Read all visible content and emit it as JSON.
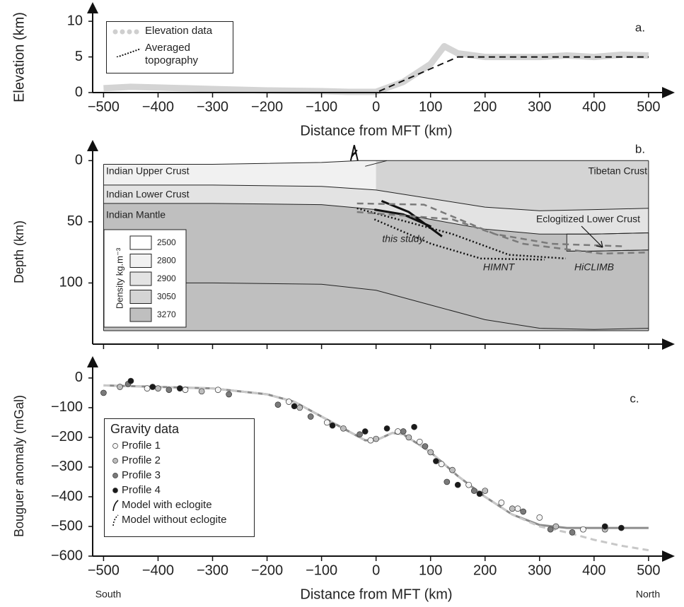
{
  "chart_data": [
    {
      "type": "line",
      "label": "a.",
      "xlabel": "Distance from MFT (km)",
      "ylabel": "Elevation (km)",
      "xlim": [
        -520,
        530
      ],
      "ylim": [
        0,
        11.5
      ],
      "xticks": [
        {
          "value": -500,
          "label": "−500"
        },
        {
          "value": -400,
          "label": "−400"
        },
        {
          "value": -300,
          "label": "−300"
        },
        {
          "value": -200,
          "label": "−200"
        },
        {
          "value": -100,
          "label": "−100"
        },
        0,
        100,
        200,
        300,
        400,
        500
      ],
      "yticks": [
        0,
        5,
        10
      ],
      "series": [
        {
          "name": "Elevation data",
          "color": "#cfcfcf",
          "style": "band",
          "x": [
            -500,
            -450,
            -400,
            -350,
            -300,
            -250,
            -200,
            -150,
            -100,
            -50,
            0,
            50,
            100,
            125,
            150,
            200,
            250,
            300,
            350,
            400,
            450,
            500
          ],
          "values": [
            0.6,
            0.8,
            0.7,
            0.6,
            0.5,
            0.4,
            0.3,
            0.25,
            0.2,
            0.1,
            0.1,
            1.5,
            4,
            6.5,
            5.5,
            5,
            5,
            5,
            5.2,
            5,
            5.3,
            5.2
          ]
        },
        {
          "name": "Averaged topography",
          "color": "#111111",
          "style": "dashed",
          "x": [
            -500,
            0,
            150,
            500
          ],
          "values": [
            0,
            0,
            5,
            5
          ]
        }
      ]
    },
    {
      "type": "cross-section",
      "label": "b.",
      "ylabel": "Depth (km)",
      "xlim": [
        -520,
        530
      ],
      "ylim": [
        -10,
        150
      ],
      "xticks": [
        -500,
        -400,
        -300,
        -200,
        -100,
        0,
        100,
        200,
        300,
        400,
        500
      ],
      "yticks": [
        0,
        50,
        100
      ],
      "region_labels": [
        "Indian Upper Crust",
        "Indian Lower Crust",
        "Indian Mantle",
        "Tibetan Crust",
        "Eclogitized Lower Crust"
      ],
      "legend": {
        "title": "Density kg.m⁻³",
        "entries": [
          {
            "value": 2500,
            "color": "#ffffff"
          },
          {
            "value": 2800,
            "color": "#f1f1f1"
          },
          {
            "value": 2900,
            "color": "#e3e3e3"
          },
          {
            "value": 3050,
            "color": "#d4d4d4"
          },
          {
            "value": 3270,
            "color": "#bfbfbf"
          }
        ]
      },
      "interfaces": [
        {
          "x": [
            -500,
            -300,
            -100,
            -30,
            0,
            500
          ],
          "values": [
            3,
            3,
            1.5,
            0,
            0,
            0
          ]
        },
        {
          "x": [
            -500,
            -300,
            -100,
            0,
            100,
            200,
            300,
            400,
            500
          ],
          "values": [
            20,
            20,
            21,
            24,
            31,
            38,
            41,
            40,
            39
          ]
        },
        {
          "x": [
            -500,
            -300,
            -100,
            0,
            100,
            200,
            300,
            400,
            500
          ],
          "values": [
            35,
            35,
            36,
            40,
            48,
            56,
            60,
            60,
            59
          ]
        },
        {
          "x": [
            -500,
            -300,
            -100,
            0,
            100,
            200,
            300,
            400,
            500
          ],
          "values": [
            100,
            100,
            101,
            106,
            118,
            130,
            137,
            138,
            137
          ]
        },
        {
          "x": [
            -500,
            500
          ],
          "values": [
            139,
            139
          ]
        },
        {
          "x": [
            350,
            400,
            500
          ],
          "values": [
            74,
            74,
            73
          ]
        }
      ],
      "series": [
        {
          "name": "this study",
          "color": "#111111",
          "style": "solid",
          "x": [
            10,
            60,
            121,
            null,
            -3,
            50,
            101
          ],
          "values": [
            33,
            42,
            62,
            null,
            40,
            44,
            54
          ]
        },
        {
          "name": "HIMNT",
          "color": "#111111",
          "style": "dotted",
          "x": [
            -35,
            140,
            244,
            348,
            null,
            -3,
            101,
            192,
            309
          ],
          "values": [
            39,
            60,
            77,
            80,
            null,
            48,
            68,
            80,
            81
          ]
        },
        {
          "name": "HiCLIMB",
          "color": "#7a7a7a",
          "style": "dashed",
          "x": [
            -35,
            88,
            218,
            322,
            452,
            null,
            -35,
            140,
            270,
            413,
            500
          ],
          "values": [
            35,
            36,
            60,
            68,
            70,
            null,
            42,
            48,
            68,
            76,
            75
          ]
        }
      ]
    },
    {
      "type": "scatter",
      "label": "c.",
      "xlabel": "Distance from MFT (km)",
      "ylabel": "Bouguer anomaly (mGal)",
      "direction_labels": [
        "South",
        "North"
      ],
      "legend_title": "Gravity data",
      "xlim": [
        -520,
        530
      ],
      "ylim": [
        -600,
        45
      ],
      "xticks": [
        {
          "value": -500,
          "label": "−500"
        },
        {
          "value": -400,
          "label": "−400"
        },
        {
          "value": -300,
          "label": "−300"
        },
        {
          "value": -200,
          "label": "−200"
        },
        {
          "value": -100,
          "label": "−100"
        },
        0,
        100,
        200,
        300,
        400,
        500
      ],
      "yticks": [
        {
          "value": -600,
          "label": "−600"
        },
        {
          "value": -500,
          "label": "−500"
        },
        {
          "value": -400,
          "label": "−400"
        },
        {
          "value": -300,
          "label": "−300"
        },
        {
          "value": -200,
          "label": "−200"
        },
        {
          "value": -100,
          "label": "−100"
        },
        0
      ],
      "series": [
        {
          "name": "Profile 1",
          "kind": "points",
          "color": "#f5f5f5",
          "x": [
            -420,
            -350,
            -290,
            -160,
            -90,
            -10,
            40,
            80,
            120,
            170,
            230,
            260,
            300,
            380
          ],
          "values": [
            -35,
            -40,
            -40,
            -80,
            -150,
            -210,
            -180,
            -215,
            -290,
            -360,
            -420,
            -440,
            -470,
            -510
          ]
        },
        {
          "name": "Profile 2",
          "kind": "points",
          "color": "#bdbdbd",
          "x": [
            -470,
            -400,
            -320,
            -140,
            -60,
            0,
            60,
            100,
            140,
            200,
            250,
            330,
            420
          ],
          "values": [
            -30,
            -35,
            -45,
            -100,
            -170,
            -205,
            -200,
            -250,
            -310,
            -380,
            -440,
            -500,
            -510
          ]
        },
        {
          "name": "Profile 3",
          "kind": "points",
          "color": "#7a7a7a",
          "x": [
            -500,
            -455,
            -380,
            -270,
            -180,
            -120,
            -30,
            50,
            90,
            130,
            180,
            270,
            320,
            360
          ],
          "values": [
            -50,
            -20,
            -40,
            -55,
            -90,
            -130,
            -190,
            -180,
            -230,
            -350,
            -380,
            -450,
            -510,
            -520
          ]
        },
        {
          "name": "Profile 4",
          "kind": "points",
          "color": "#1a1a1a",
          "x": [
            -450,
            -410,
            -360,
            -150,
            -80,
            -20,
            20,
            70,
            110,
            150,
            190,
            420,
            450
          ],
          "values": [
            -10,
            -30,
            -35,
            -95,
            -160,
            -180,
            -170,
            -165,
            -280,
            -360,
            -390,
            -500,
            -505
          ]
        },
        {
          "name": "Model with eclogite",
          "kind": "line",
          "color": "#8c8c8c",
          "x": [
            -500,
            -400,
            -300,
            -200,
            -150,
            -100,
            -50,
            -20,
            0,
            30,
            50,
            100,
            150,
            200,
            250,
            300,
            350,
            400,
            450,
            500
          ],
          "values": [
            -25,
            -30,
            -35,
            -55,
            -80,
            -130,
            -180,
            -210,
            -210,
            -185,
            -190,
            -250,
            -330,
            -400,
            -460,
            -495,
            -505,
            -505,
            -505,
            -505
          ]
        },
        {
          "name": "Model without eclogite",
          "kind": "dashed",
          "color": "#c8c8c8",
          "x": [
            -500,
            -400,
            -300,
            -200,
            -150,
            -100,
            -50,
            -20,
            0,
            30,
            50,
            100,
            150,
            200,
            250,
            300,
            350,
            400,
            450,
            500
          ],
          "values": [
            -25,
            -30,
            -35,
            -55,
            -80,
            -130,
            -180,
            -210,
            -210,
            -185,
            -190,
            -250,
            -330,
            -400,
            -460,
            -500,
            -520,
            -545,
            -565,
            -580
          ]
        }
      ]
    }
  ]
}
